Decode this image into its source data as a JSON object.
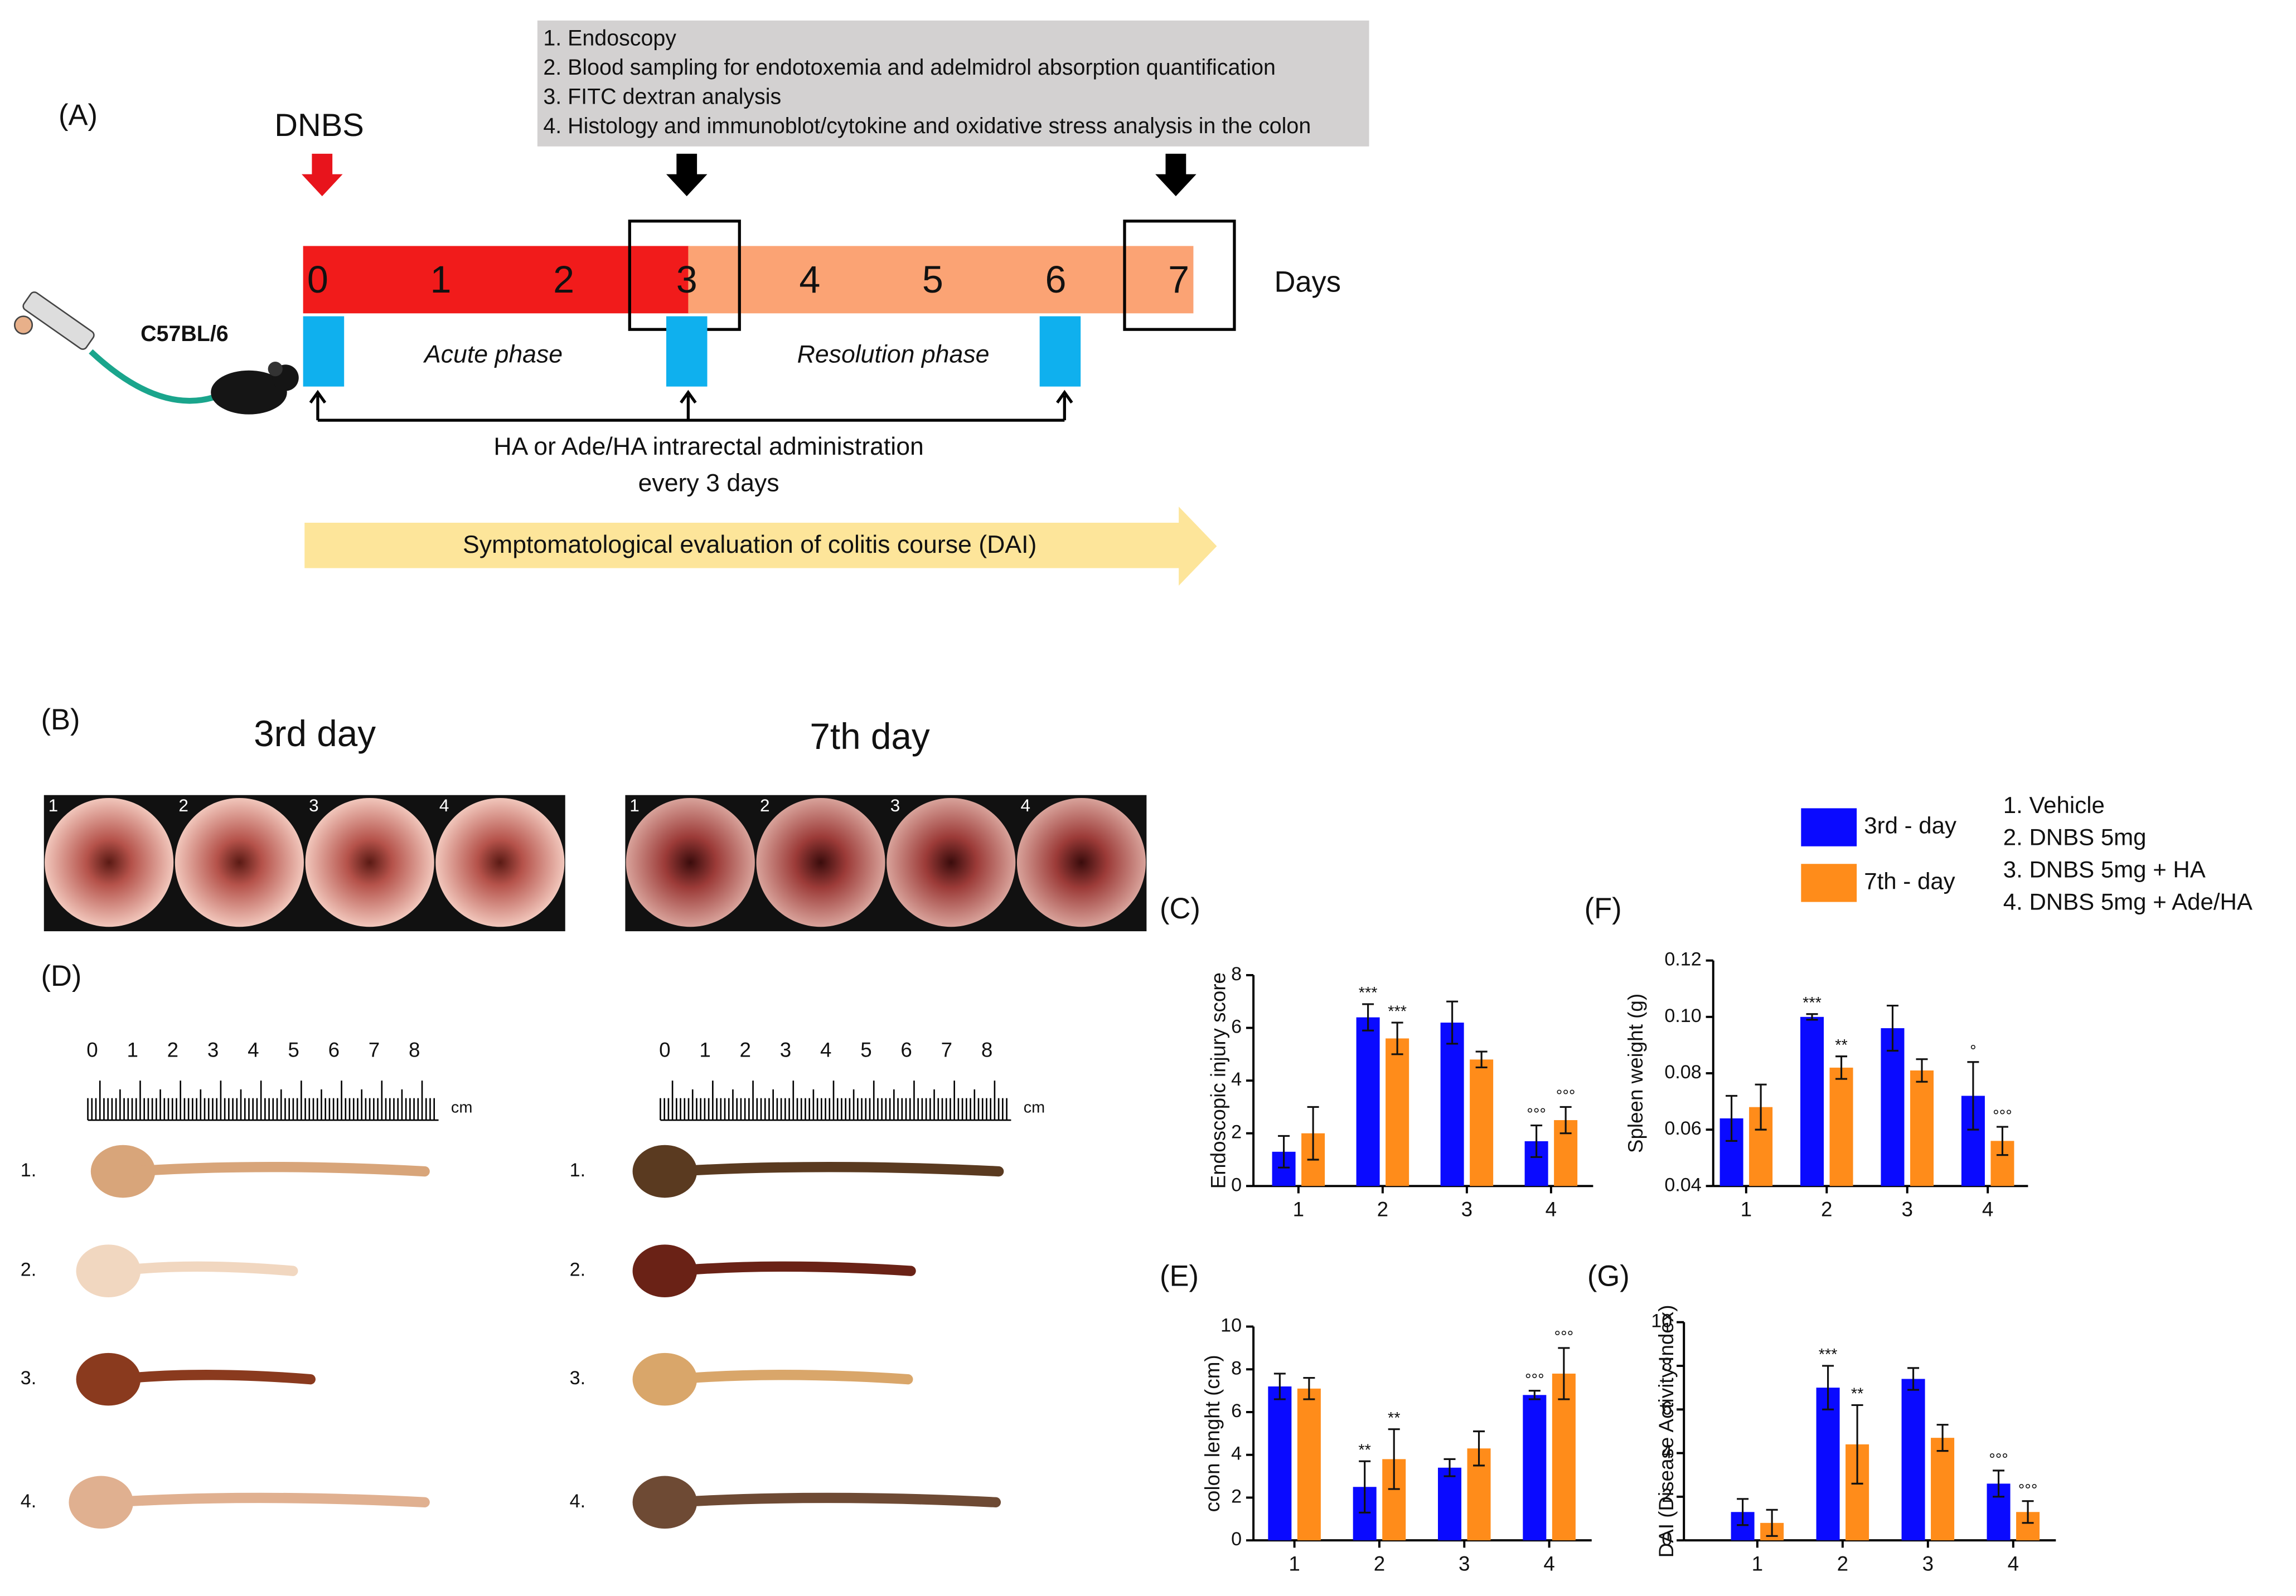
{
  "panels": {
    "a": {
      "label": "(A)",
      "treatment": "DNBS",
      "steps": [
        "1.  Endoscopy",
        "2.  Blood sampling for endotoxemia and adelmidrol absorption quantification",
        "3.  FITC dextran analysis",
        "4.  Histology and immunoblot/cytokine and oxidative stress analysis in the colon"
      ],
      "days": [
        0,
        1,
        2,
        3,
        4,
        5,
        6,
        7
      ],
      "days_label": "Days",
      "strain": "C57BL/6",
      "phases": [
        "Acute phase",
        "Resolution phase"
      ],
      "administration": [
        "HA or Ade/HA intrarectal administration",
        "every 3 days"
      ],
      "evaluation": "Symptomatological evaluation of colitis course (DAI)"
    },
    "b": {
      "label": "(B)",
      "timepoints": [
        "3rd day",
        "7th day"
      ],
      "photo_labels": [
        "1",
        "2",
        "3",
        "4"
      ]
    },
    "d": {
      "label": "(D)",
      "ruler": [
        0,
        1,
        2,
        3,
        4,
        5,
        6,
        7,
        8
      ],
      "unit": "cm",
      "rows": [
        "1.",
        "2.",
        "3.",
        "4."
      ]
    }
  },
  "legend": {
    "groups": [
      "1. Vehicle",
      "2. DNBS 5mg",
      "3. DNBS 5mg + HA",
      "4. DNBS 5mg + Ade/HA"
    ]
  },
  "chart_data": [
    {
      "type": "bar",
      "label": "(C)",
      "y_label": "Endoscopic injury score",
      "categories": [
        "1",
        "2",
        "3",
        "4"
      ],
      "ylim": [
        0,
        8
      ],
      "yticks": [
        0,
        2,
        4,
        6,
        8
      ],
      "series": [
        {
          "name": "3rd - day",
          "color": "#0a0aff",
          "values": [
            1.3,
            6.4,
            6.2,
            1.7
          ],
          "errors": [
            0.6,
            0.5,
            0.8,
            0.6
          ],
          "annotations": [
            null,
            "***",
            null,
            "°°°"
          ]
        },
        {
          "name": "7th - day",
          "color": "#ff8c1a",
          "values": [
            2.0,
            5.6,
            4.8,
            2.5
          ],
          "errors": [
            1.0,
            0.6,
            0.3,
            0.5
          ],
          "annotations": [
            null,
            "***",
            null,
            "°°°"
          ]
        }
      ]
    },
    {
      "type": "bar",
      "label": "(F)",
      "y_label": "Spleen weight (g)",
      "categories": [
        "1",
        "2",
        "3",
        "4"
      ],
      "ylim": [
        0.04,
        0.12
      ],
      "yticks": [
        0.04,
        0.06,
        0.08,
        {
          "value": 0.1,
          "label": "0.10"
        },
        0.12
      ],
      "series": [
        {
          "color": "#0a0aff",
          "values": [
            0.064,
            0.1,
            0.096,
            0.072
          ],
          "errors": [
            0.008,
            0.001,
            0.008,
            0.012
          ],
          "annotations": [
            null,
            "***",
            null,
            "°"
          ]
        },
        {
          "color": "#ff8c1a",
          "values": [
            0.068,
            0.082,
            0.081,
            0.056
          ],
          "errors": [
            0.008,
            0.004,
            0.004,
            0.005
          ],
          "annotations": [
            null,
            "**",
            null,
            "°°°"
          ]
        }
      ]
    },
    {
      "type": "bar",
      "label": "(E)",
      "y_label": "colon lenght (cm)",
      "categories": [
        "1",
        "2",
        "3",
        "4"
      ],
      "ylim": [
        0,
        10
      ],
      "yticks": [
        0,
        2,
        4,
        6,
        8,
        10
      ],
      "series": [
        {
          "color": "#0a0aff",
          "values": [
            7.2,
            2.5,
            3.4,
            6.8
          ],
          "errors": [
            0.6,
            1.2,
            0.4,
            0.2
          ],
          "annotations": [
            null,
            "**",
            null,
            "°°°"
          ]
        },
        {
          "color": "#ff8c1a",
          "values": [
            7.1,
            3.8,
            4.3,
            7.8
          ],
          "errors": [
            0.5,
            1.4,
            0.8,
            1.2
          ],
          "annotations": [
            null,
            "**",
            null,
            "°°°"
          ]
        }
      ]
    },
    {
      "type": "bar",
      "label": "(G)",
      "y_label": "DAI (Disease Activity Index)",
      "categories": [
        "1",
        "2",
        "3",
        "4"
      ],
      "ylim": [
        0,
        10
      ],
      "yticks": [
        0,
        2,
        4,
        6,
        8,
        10
      ],
      "series": [
        {
          "color": "#0a0aff",
          "values": [
            1.3,
            7.0,
            7.4,
            2.6
          ],
          "errors": [
            0.6,
            1.0,
            0.5,
            0.6
          ],
          "annotations": [
            null,
            "***",
            null,
            "°°°"
          ]
        },
        {
          "color": "#ff8c1a",
          "values": [
            0.8,
            4.4,
            4.7,
            1.3
          ],
          "errors": [
            0.6,
            1.8,
            0.6,
            0.5
          ],
          "annotations": [
            null,
            "**",
            null,
            "°°°"
          ]
        }
      ]
    }
  ]
}
